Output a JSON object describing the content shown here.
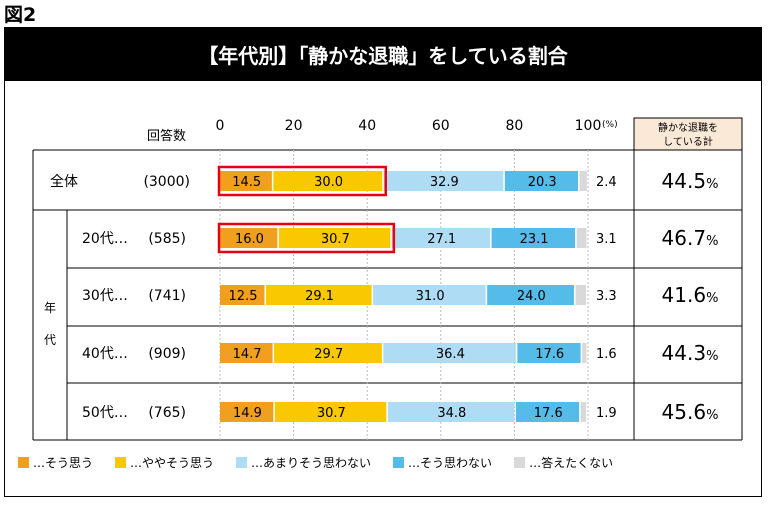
{
  "figure_label": "図2",
  "colors": {
    "s1": "#F0A01E",
    "s2": "#FAC800",
    "s3": "#AEDCF5",
    "s4": "#55BCEA",
    "s5": "#D9D9D9",
    "highlight": "#E60012",
    "total_header_bg": "#FBE9D7"
  },
  "chart_data": {
    "type": "bar",
    "orientation": "horizontal",
    "stacked": true,
    "title": "【年代別】「静かな退職」をしている割合",
    "column_header_count": "回答数",
    "axis_ticks": [
      "0",
      "20",
      "40",
      "60",
      "80",
      "100"
    ],
    "axis_unit": "(%)",
    "xlim": [
      0,
      100
    ],
    "group_label": "年代",
    "total_header_line1": "静かな退職を",
    "total_header_line2": "している計",
    "categories": [
      {
        "label": "全体",
        "count": "(3000)",
        "total": "44.5",
        "highlight": true
      },
      {
        "label": "20代…",
        "count": "(585)",
        "total": "46.7",
        "highlight": true
      },
      {
        "label": "30代…",
        "count": "(741)",
        "total": "41.6",
        "highlight": false
      },
      {
        "label": "40代…",
        "count": "(909)",
        "total": "44.3",
        "highlight": false
      },
      {
        "label": "50代…",
        "count": "(765)",
        "total": "45.6",
        "highlight": false
      }
    ],
    "total_unit": "%",
    "series": [
      {
        "name": "…そう思う",
        "values": [
          14.5,
          16.0,
          12.5,
          14.7,
          14.9
        ]
      },
      {
        "name": "…ややそう思う",
        "values": [
          30.0,
          30.7,
          29.1,
          29.7,
          30.7
        ]
      },
      {
        "name": "…あまりそう思わない",
        "values": [
          32.9,
          27.1,
          31.0,
          36.4,
          34.8
        ]
      },
      {
        "name": "…そう思わない",
        "values": [
          20.3,
          23.1,
          24.0,
          17.6,
          17.6
        ]
      },
      {
        "name": "…答えたくない",
        "values": [
          2.4,
          3.1,
          3.3,
          1.6,
          1.9
        ]
      }
    ],
    "value_labels": [
      [
        "14.5",
        "30.0",
        "32.9",
        "20.3",
        "2.4"
      ],
      [
        "16.0",
        "30.7",
        "27.1",
        "23.1",
        "3.1"
      ],
      [
        "12.5",
        "29.1",
        "31.0",
        "24.0",
        "3.3"
      ],
      [
        "14.7",
        "29.7",
        "36.4",
        "17.6",
        "1.6"
      ],
      [
        "14.9",
        "30.7",
        "34.8",
        "17.6",
        "1.9"
      ]
    ]
  }
}
